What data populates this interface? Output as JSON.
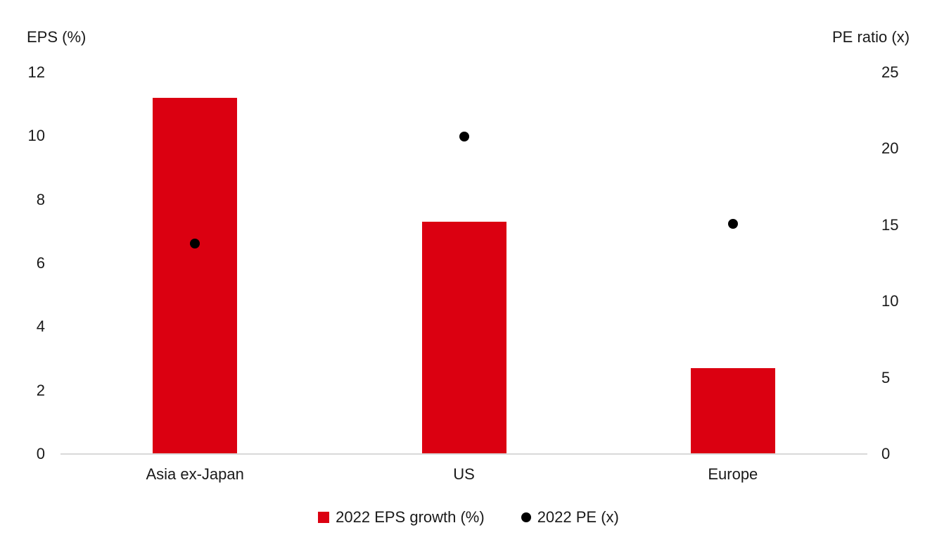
{
  "chart_data": {
    "type": "bar",
    "subtype": "combo-bar-scatter",
    "categories": [
      "Asia ex-Japan",
      "US",
      "Europe"
    ],
    "series": [
      {
        "name": "2022 EPS growth (%)",
        "type": "bar",
        "axis": "left",
        "color": "#db0011",
        "values": [
          11.2,
          7.3,
          2.7
        ]
      },
      {
        "name": "2022 PE (x)",
        "type": "scatter",
        "axis": "right",
        "color": "#000000",
        "values": [
          13.8,
          20.8,
          15.1
        ]
      }
    ],
    "title": "",
    "left_axis": {
      "title": "EPS (%)",
      "min": 0,
      "max": 12,
      "ticks": [
        0,
        2,
        4,
        6,
        8,
        10,
        12
      ]
    },
    "right_axis": {
      "title": "PE ratio (x)",
      "min": 0,
      "max": 25,
      "ticks": [
        0,
        5,
        10,
        15,
        20,
        25
      ]
    },
    "grid": false,
    "legend_position": "bottom-center",
    "legend": [
      "2022 EPS growth (%)",
      "2022 PE (x)"
    ]
  },
  "colors": {
    "bar": "#db0011",
    "dot": "#000000",
    "axis_line": "#d9d9d9",
    "text": "#1a1a1a",
    "background": "#ffffff"
  }
}
